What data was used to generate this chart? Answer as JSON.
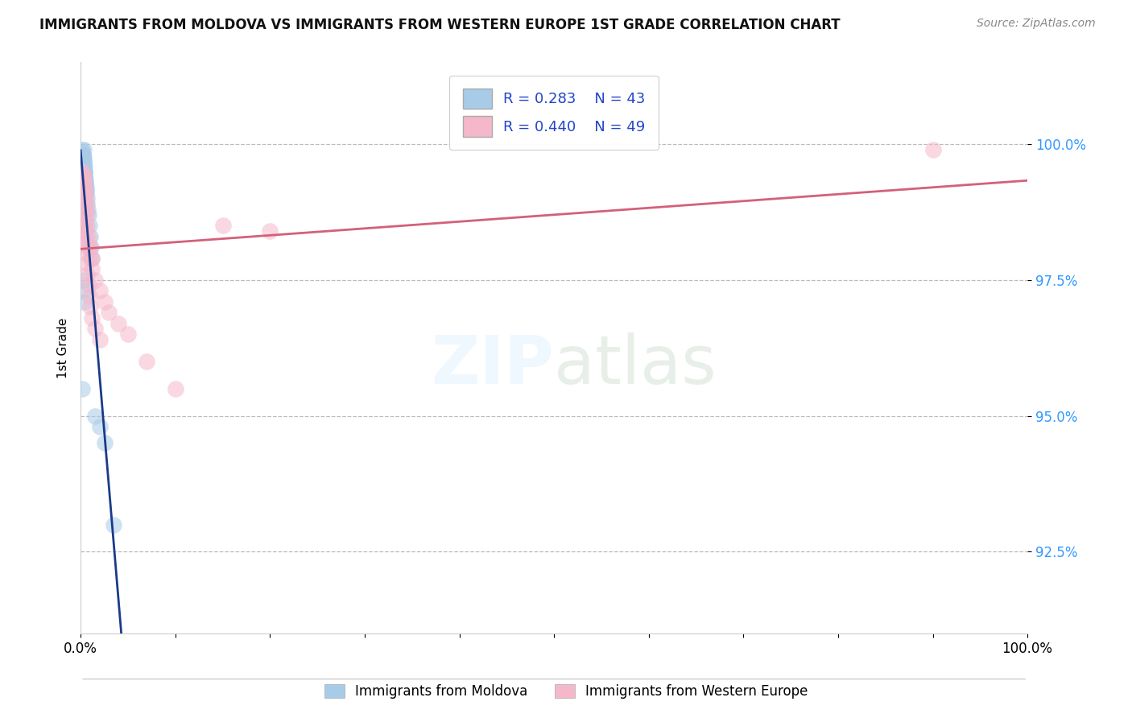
{
  "title": "IMMIGRANTS FROM MOLDOVA VS IMMIGRANTS FROM WESTERN EUROPE 1ST GRADE CORRELATION CHART",
  "source": "Source: ZipAtlas.com",
  "ylabel": "1st Grade",
  "legend_labels": [
    "Immigrants from Moldova",
    "Immigrants from Western Europe"
  ],
  "legend_r": [
    0.283,
    0.44
  ],
  "legend_n": [
    43,
    49
  ],
  "blue_color": "#A8CBE8",
  "pink_color": "#F5B8CA",
  "blue_line_color": "#1A3A8A",
  "pink_line_color": "#D4607A",
  "y_ticks": [
    92.5,
    95.0,
    97.5,
    100.0
  ],
  "y_tick_labels": [
    "92.5%",
    "95.0%",
    "97.5%",
    "100.0%"
  ],
  "xlim": [
    0.0,
    100.0
  ],
  "ylim": [
    91.0,
    101.5
  ],
  "blue_x": [
    0.15,
    0.2,
    0.22,
    0.25,
    0.28,
    0.3,
    0.3,
    0.32,
    0.35,
    0.35,
    0.38,
    0.4,
    0.4,
    0.42,
    0.45,
    0.48,
    0.5,
    0.52,
    0.55,
    0.58,
    0.6,
    0.65,
    0.7,
    0.75,
    0.8,
    0.9,
    1.0,
    1.1,
    1.2,
    0.2,
    0.25,
    0.3,
    0.35,
    0.4,
    0.45,
    1.5,
    2.0,
    2.5,
    3.5,
    0.3,
    0.35,
    0.4,
    0.2
  ],
  "blue_y": [
    99.9,
    99.85,
    99.8,
    99.8,
    99.75,
    99.9,
    99.7,
    99.65,
    99.75,
    99.6,
    99.5,
    99.6,
    99.45,
    99.4,
    99.5,
    99.35,
    99.3,
    99.25,
    99.2,
    99.15,
    99.1,
    99.0,
    98.9,
    98.8,
    98.7,
    98.5,
    98.3,
    98.1,
    97.9,
    99.5,
    99.3,
    99.1,
    98.9,
    98.7,
    98.5,
    95.0,
    94.8,
    94.5,
    93.0,
    97.5,
    97.3,
    97.1,
    95.5
  ],
  "pink_x": [
    0.18,
    0.22,
    0.25,
    0.28,
    0.3,
    0.32,
    0.35,
    0.38,
    0.4,
    0.45,
    0.5,
    0.55,
    0.6,
    0.65,
    0.7,
    0.8,
    0.9,
    1.0,
    1.2,
    1.5,
    2.0,
    2.5,
    3.0,
    4.0,
    5.0,
    7.0,
    10.0,
    15.0,
    20.0,
    90.0,
    0.3,
    0.35,
    0.4,
    0.45,
    0.5,
    0.55,
    0.6,
    0.7,
    0.8,
    0.9,
    1.0,
    1.2,
    1.5,
    2.0,
    1.0,
    1.2,
    0.5,
    0.6,
    0.7
  ],
  "pink_y": [
    99.5,
    99.45,
    99.4,
    99.35,
    99.3,
    99.25,
    99.2,
    99.15,
    99.1,
    99.05,
    99.0,
    98.9,
    98.8,
    98.7,
    98.5,
    98.3,
    98.1,
    97.9,
    97.7,
    97.5,
    97.3,
    97.1,
    96.9,
    96.7,
    96.5,
    96.0,
    95.5,
    98.5,
    98.4,
    99.9,
    99.0,
    98.8,
    98.6,
    98.4,
    98.2,
    98.0,
    97.8,
    97.6,
    97.4,
    97.2,
    97.0,
    96.8,
    96.6,
    96.4,
    98.1,
    97.9,
    98.5,
    98.3,
    98.1
  ]
}
